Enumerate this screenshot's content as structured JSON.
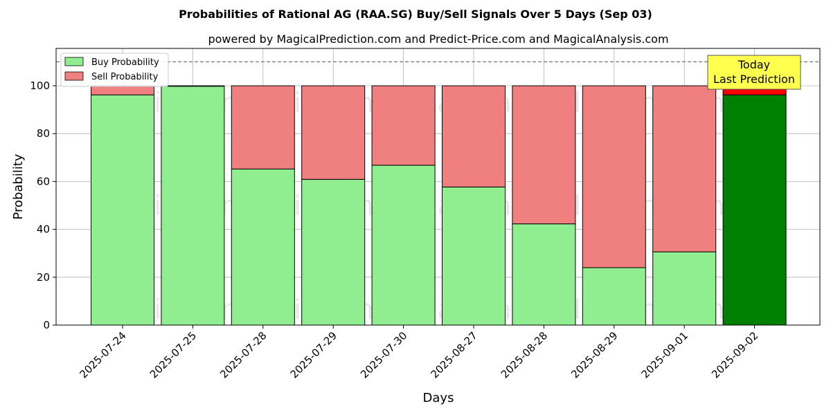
{
  "chart_data": {
    "type": "bar",
    "stacked": true,
    "title": "Probabilities of Rational AG (RAA.SG) Buy/Sell Signals Over 5 Days (Sep 03)",
    "subtitle": "powered by MagicalPrediction.com and Predict-Price.com and MagicalAnalysis.com",
    "xlabel": "Days",
    "ylabel": "Probability",
    "ylim": [
      0,
      115
    ],
    "yticks": [
      0,
      20,
      40,
      60,
      80,
      100
    ],
    "reference_line": 110,
    "grid": true,
    "legend_position": "top-left",
    "categories": [
      "2025-07-24",
      "2025-07-25",
      "2025-07-28",
      "2025-07-29",
      "2025-07-30",
      "2025-08-27",
      "2025-08-28",
      "2025-08-29",
      "2025-09-01",
      "2025-09-02"
    ],
    "series": [
      {
        "name": "Buy Probability",
        "color": "#90ee90",
        "highlight_color": "#008000",
        "values": [
          96.2,
          99.8,
          65.2,
          60.9,
          66.8,
          57.7,
          42.3,
          24.0,
          30.6,
          96.2
        ]
      },
      {
        "name": "Sell Probability",
        "color": "#f08080",
        "highlight_color": "#ff0000",
        "values": [
          3.8,
          0.2,
          34.8,
          39.1,
          33.2,
          42.3,
          57.7,
          76.0,
          69.4,
          3.8
        ]
      }
    ],
    "highlight_index": 9,
    "annotation": {
      "line1": "Today",
      "line2": "Last Prediction",
      "bg_color": "#ffff4d"
    },
    "watermarks": [
      "MagicalAnalysis.com",
      "MagicalPrediction.com"
    ]
  }
}
